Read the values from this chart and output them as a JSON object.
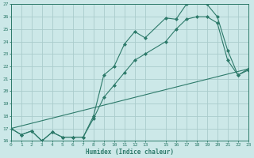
{
  "xlabel": "Humidex (Indice chaleur)",
  "ylabel": "",
  "bg_color": "#cce8e8",
  "grid_color": "#aacccc",
  "line_color": "#2d7a6a",
  "ylim": [
    16,
    27
  ],
  "xlim": [
    0,
    23
  ],
  "yticks": [
    16,
    17,
    18,
    19,
    20,
    21,
    22,
    23,
    24,
    25,
    26,
    27
  ],
  "xticks": [
    0,
    1,
    2,
    3,
    4,
    5,
    6,
    7,
    8,
    9,
    10,
    11,
    12,
    13,
    15,
    16,
    17,
    18,
    19,
    20,
    21,
    22,
    23
  ],
  "line1_x": [
    0,
    1,
    2,
    3,
    4,
    5,
    6,
    7,
    8,
    9,
    10,
    11,
    12,
    13,
    15,
    16,
    17,
    18,
    19,
    20,
    21,
    22,
    23
  ],
  "line1_y": [
    17.0,
    16.5,
    16.8,
    16.0,
    16.7,
    16.3,
    16.3,
    16.3,
    18.0,
    21.3,
    22.0,
    23.8,
    24.8,
    24.3,
    25.9,
    25.8,
    27.0,
    27.2,
    27.0,
    26.0,
    23.3,
    21.3,
    21.8
  ],
  "line2_x": [
    0,
    1,
    2,
    3,
    4,
    5,
    6,
    7,
    8,
    9,
    10,
    11,
    12,
    13,
    15,
    16,
    17,
    18,
    19,
    20,
    21,
    22,
    23
  ],
  "line2_y": [
    17.0,
    16.5,
    16.8,
    16.0,
    16.7,
    16.3,
    16.3,
    16.3,
    17.8,
    19.5,
    20.5,
    21.5,
    22.5,
    23.0,
    24.0,
    25.0,
    25.8,
    26.0,
    26.0,
    25.5,
    22.5,
    21.3,
    21.7
  ],
  "line3_x": [
    0,
    23
  ],
  "line3_y": [
    17.0,
    21.8
  ]
}
